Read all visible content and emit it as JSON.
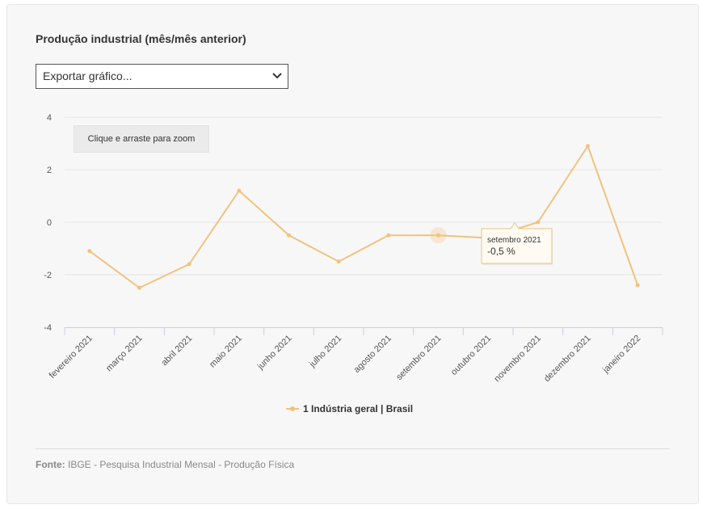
{
  "page": {
    "title": "Produção industrial (mês/mês anterior)",
    "export_label": "Exportar gráfico...",
    "zoom_label": "Clique e arraste para zoom",
    "source_label": "Fonte:",
    "source_text": "IBGE - Pesquisa Industrial Mensal - Produção Física"
  },
  "colors": {
    "series": "#f1c27d",
    "grid": "#e6e6e6",
    "axis": "#c8d0e0",
    "text": "#333333"
  },
  "chart_data": {
    "type": "line",
    "categories": [
      "fevereiro 2021",
      "março 2021",
      "abril 2021",
      "maio 2021",
      "junho 2021",
      "julho 2021",
      "agosto 2021",
      "setembro 2021",
      "outubro 2021",
      "novembro 2021",
      "dezembro 2021",
      "janeiro 2022"
    ],
    "series": [
      {
        "name": "1 Indústria geral | Brasil",
        "values": [
          -1.1,
          -2.5,
          -1.6,
          1.2,
          -0.5,
          -1.5,
          -0.5,
          -0.5,
          -0.6,
          0.0,
          2.9,
          -2.4
        ]
      }
    ],
    "yticks": [
      4,
      2,
      0,
      -2,
      -4
    ],
    "ylim": [
      -4,
      4
    ],
    "grid": true,
    "legend_position": "bottom",
    "tooltip": {
      "category": "setembro 2021",
      "value": "-0,5 %",
      "index": 7
    }
  }
}
